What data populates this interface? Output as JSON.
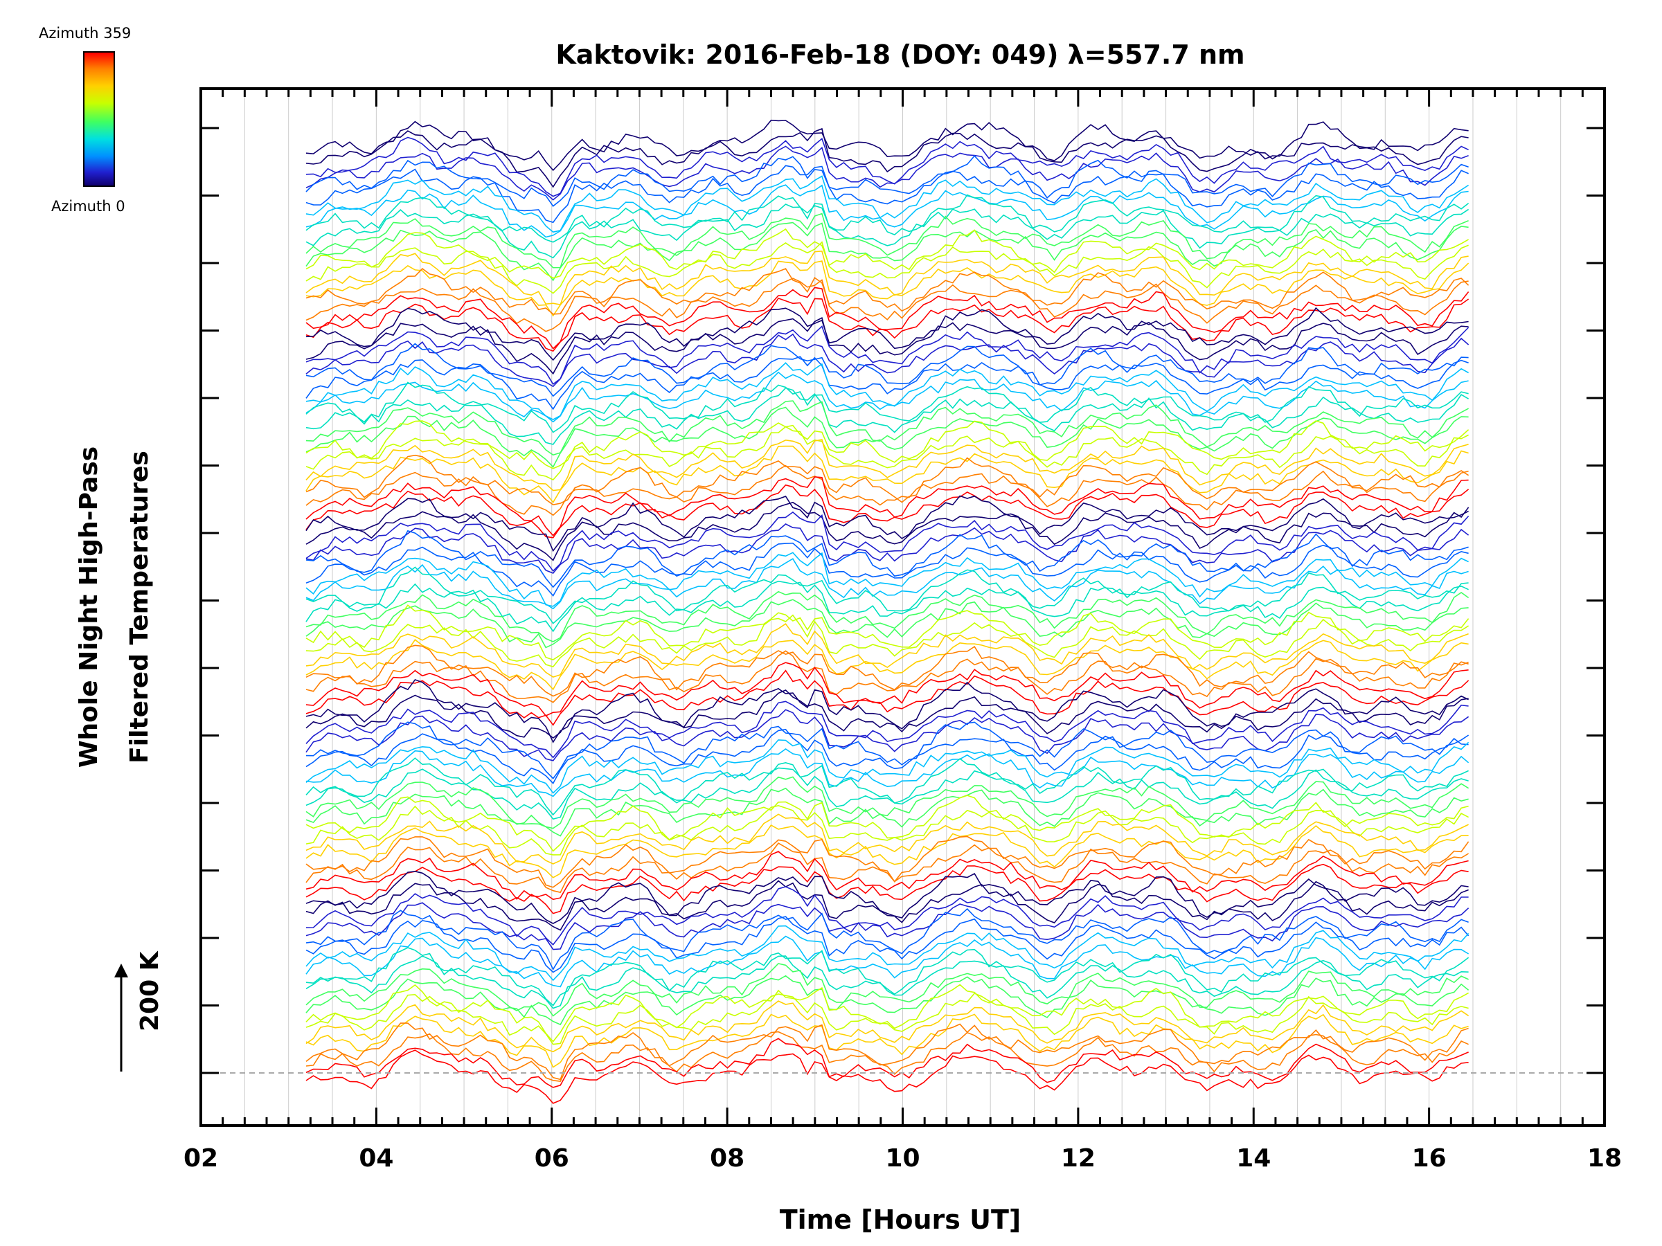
{
  "chart_data": {
    "type": "line",
    "title": "Kaktovik: 2016-Feb-18 (DOY: 049) λ=557.7 nm",
    "xlabel": "Time [Hours UT]",
    "ylabel_line1": "Whole Night High-Pass",
    "ylabel_line2": "Filtered Temperatures",
    "xlim": [
      2,
      18
    ],
    "x_ticks": [
      "02",
      "04",
      "06",
      "08",
      "10",
      "12",
      "14",
      "16",
      "18"
    ],
    "x_tick_values": [
      2,
      4,
      6,
      8,
      10,
      12,
      14,
      16,
      18
    ],
    "data_time_range": [
      3.2,
      16.45
    ],
    "y_scale_label": "200 K",
    "legend": {
      "top_label": "Azimuth 359",
      "bottom_label": "Azimuth 0",
      "colormap": "rainbow"
    },
    "series_description": "Stacked high-pass filtered temperature traces, one per azimuth 0-359, offset vertically; colour encodes azimuth",
    "colors": {
      "azimuth_0": "#100070",
      "azimuth_low": "#2020d0",
      "azimuth_mid": "#40ff60",
      "azimuth_359": "#ff0000",
      "gridline": "#cccccc",
      "axis": "#000000"
    }
  }
}
